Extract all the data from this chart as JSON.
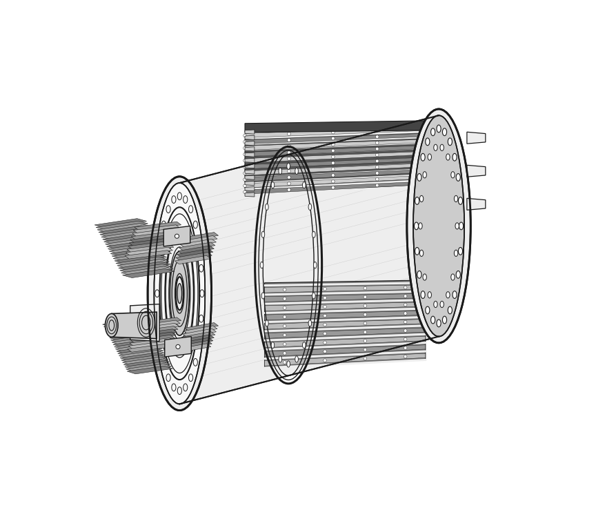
{
  "background_color": "#ffffff",
  "figsize": [
    8.64,
    7.52
  ],
  "dpi": 100,
  "lc": "#1a1a1a",
  "c_white": "#f8f8f8",
  "c_light": "#eeeeee",
  "c_mid": "#cccccc",
  "c_dark": "#999999",
  "c_vdark": "#666666",
  "c_slot": "#888888",
  "c_coil": "#aaaaaa",
  "c_bg_slots": "#bbbbbb"
}
